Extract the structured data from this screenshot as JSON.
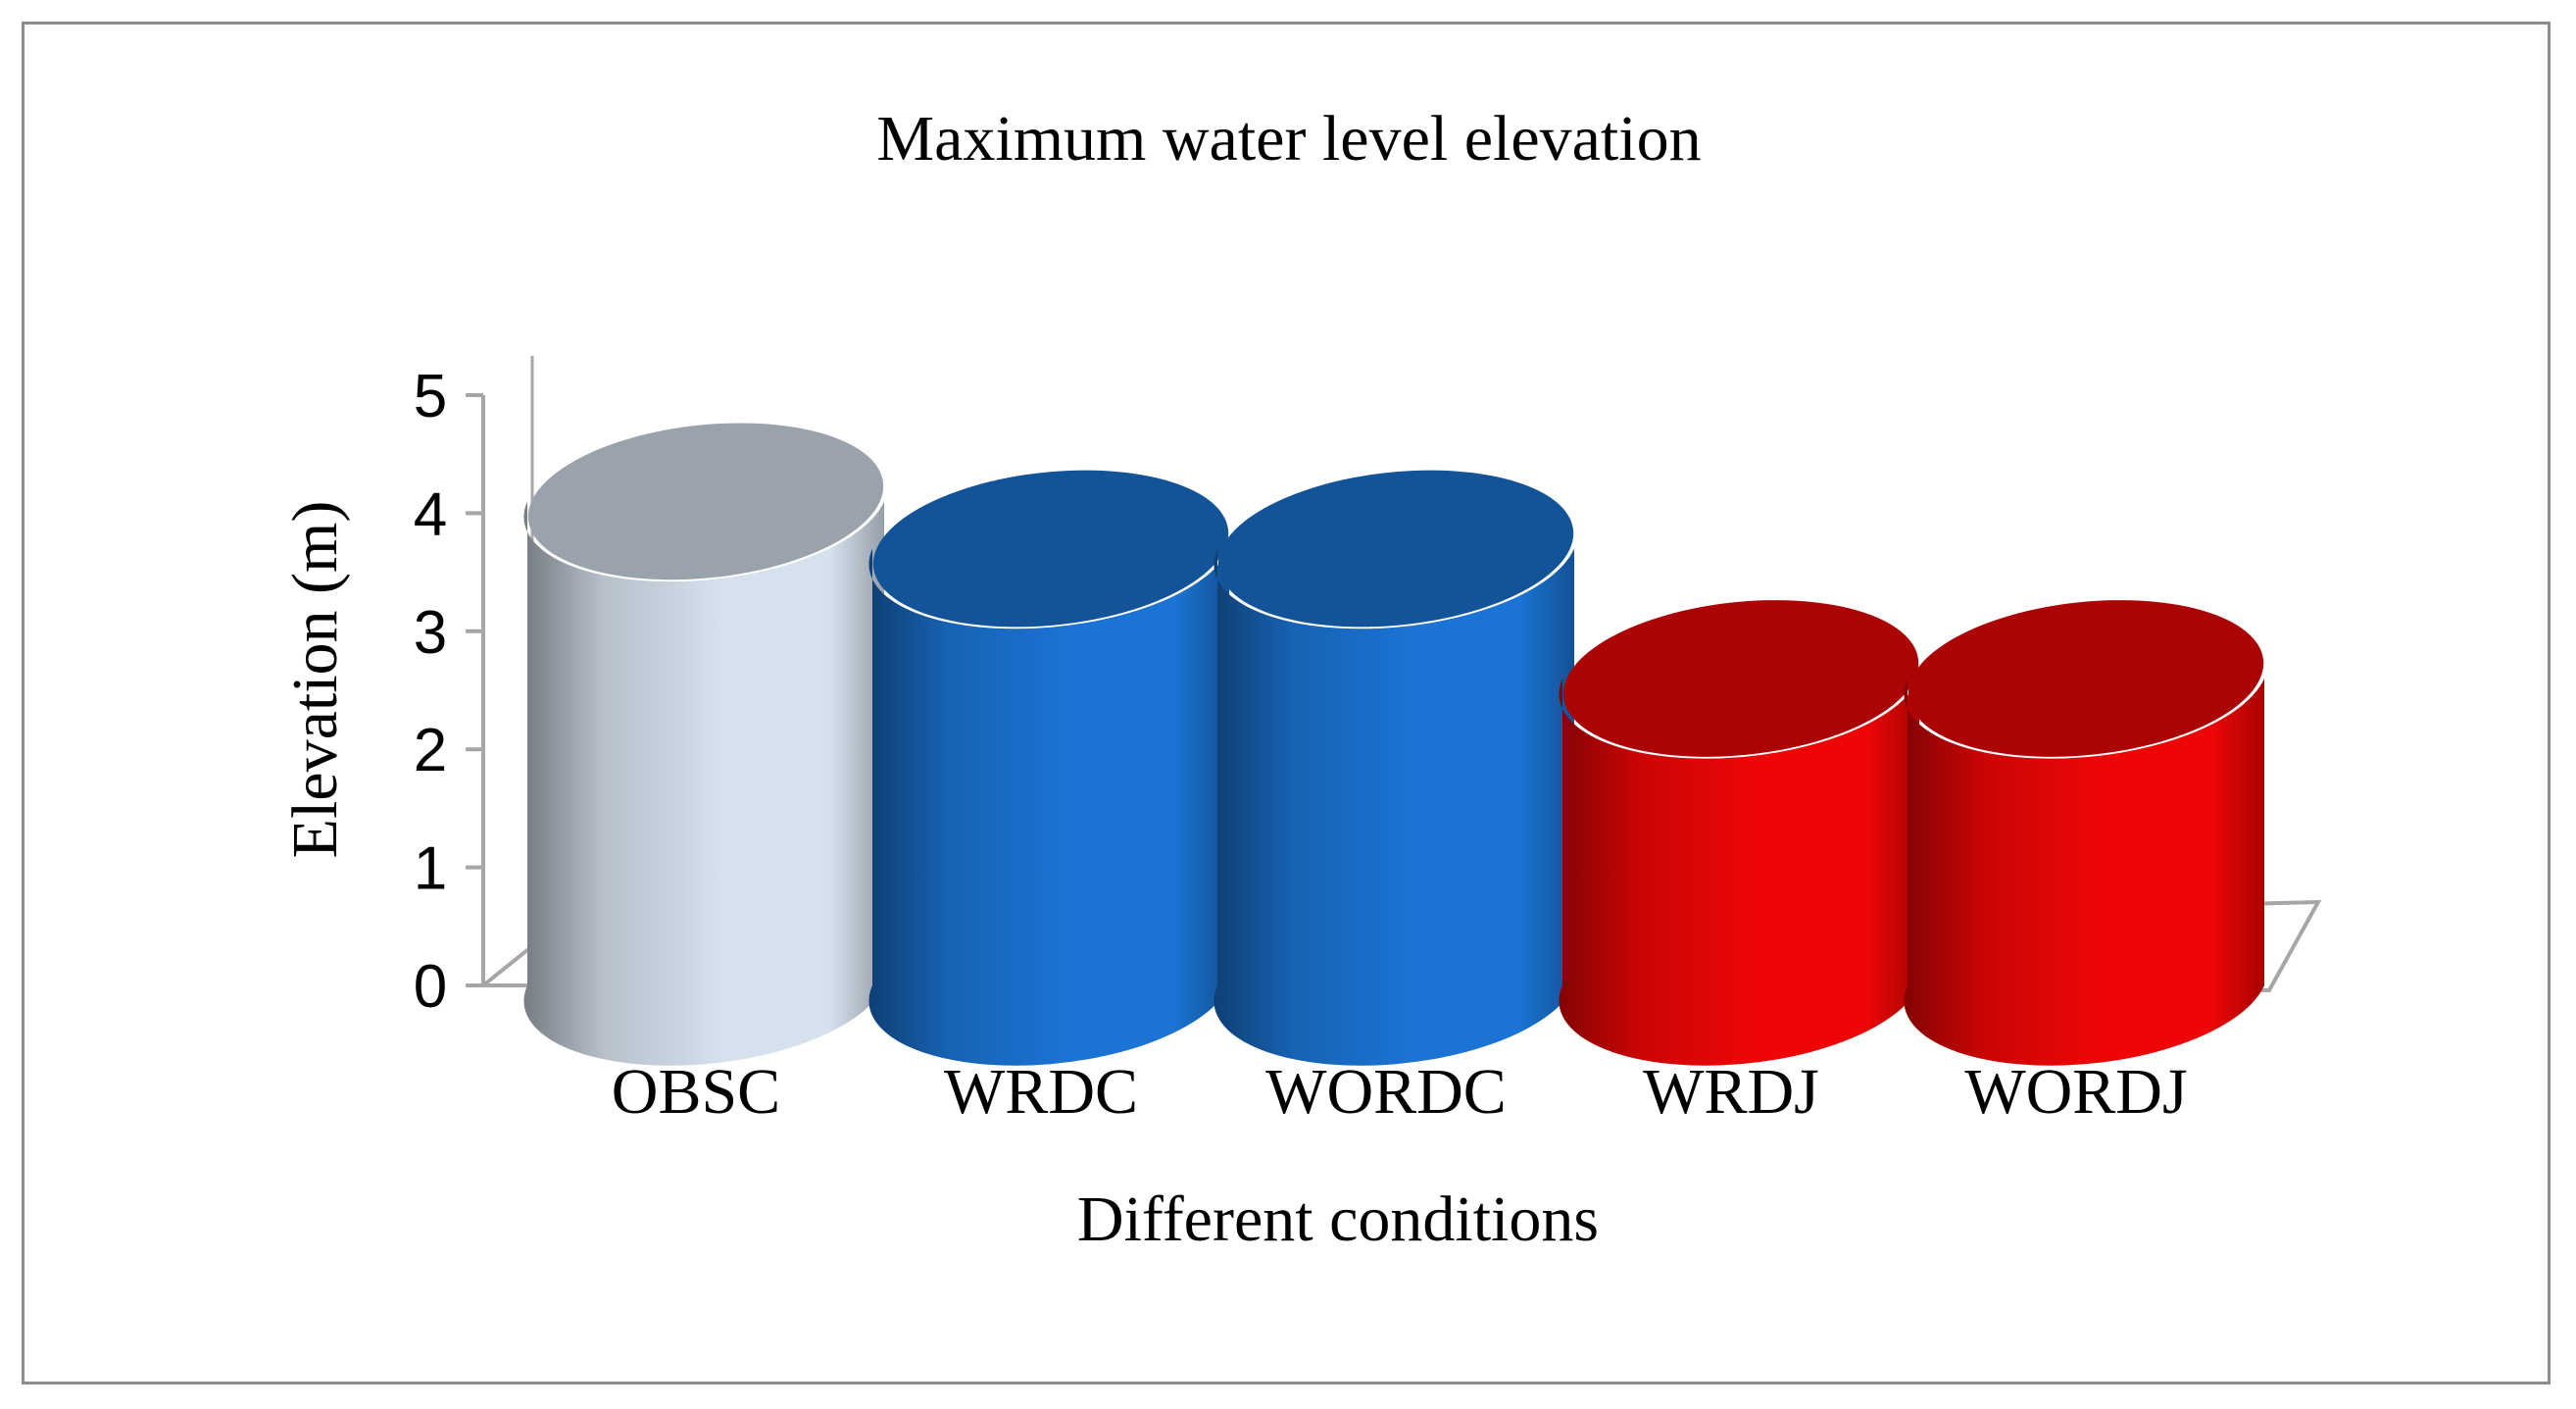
{
  "chart_data": {
    "type": "bar",
    "style": "3d-cylinder",
    "title": "Maximum water level elevation",
    "xlabel": "Different conditions",
    "ylabel": "Elevation (m)",
    "categories": [
      "OBSC",
      "WRDC",
      "WORDC",
      "WRDJ",
      "WORDJ"
    ],
    "values": [
      4.1,
      3.7,
      3.7,
      2.6,
      2.6
    ],
    "colors": [
      "#d6e1ee",
      "#1b73d3",
      "#1b73d3",
      "#ee0606",
      "#ee0606"
    ],
    "ylim": [
      0,
      5
    ],
    "yticks": [
      "0",
      "1",
      "2",
      "3",
      "4",
      "5"
    ],
    "grid": false,
    "legend": "none"
  }
}
